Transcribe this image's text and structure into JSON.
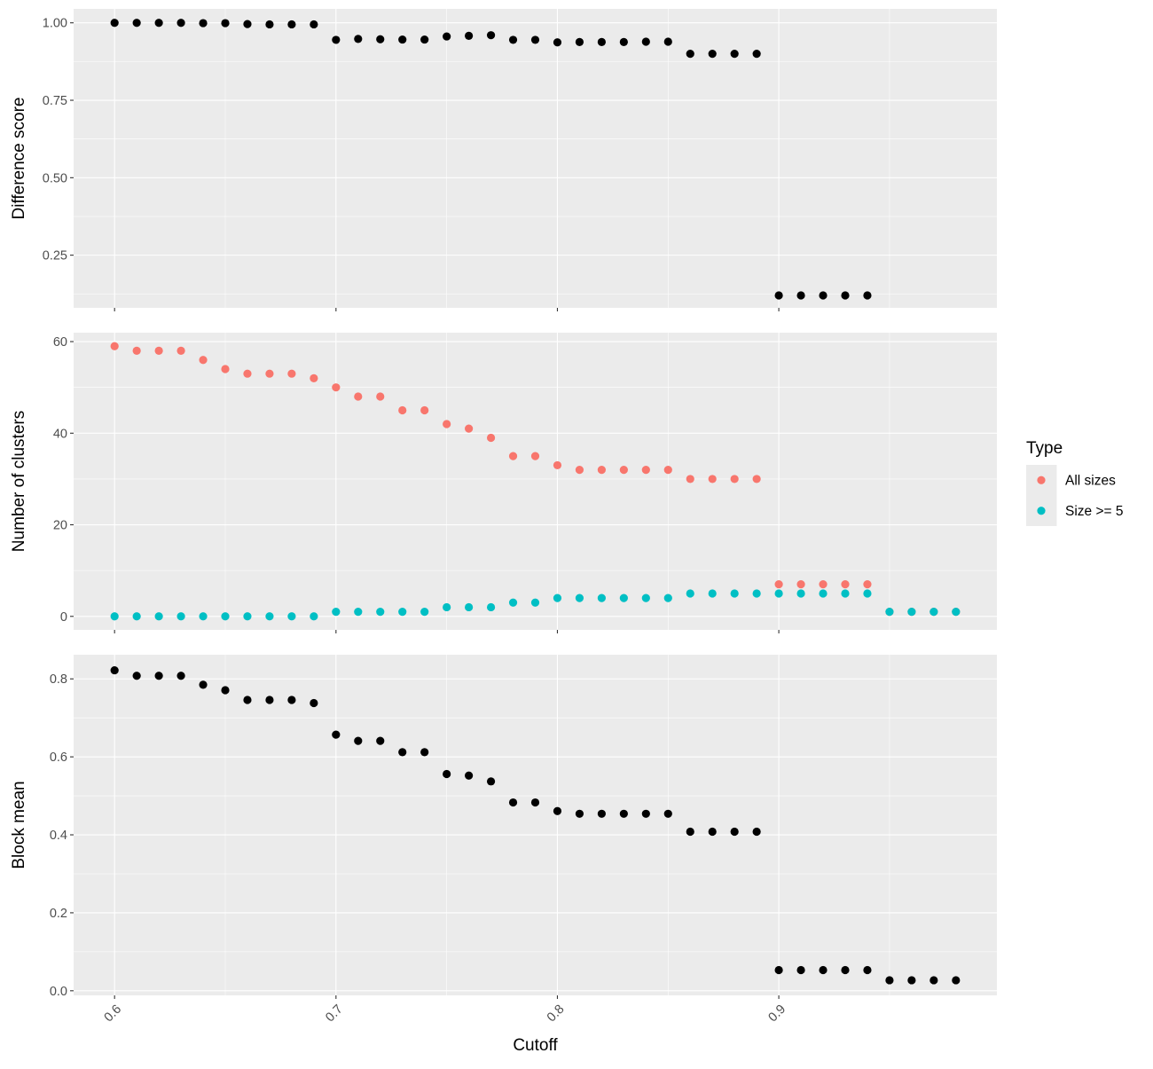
{
  "chart_data": [
    {
      "type": "scatter",
      "ylabel": "Difference score",
      "ylim": [
        0.08,
        1.045
      ],
      "yticks": [
        0.25,
        0.5,
        0.75,
        1.0
      ],
      "ytick_labels": [
        "0.25",
        "0.50",
        "0.75",
        "1.00"
      ],
      "xlim": [
        0.5815,
        0.9985
      ],
      "xticks": [
        0.6,
        0.7,
        0.8,
        0.9
      ],
      "grid": true,
      "show_x_labels": false,
      "series": [
        {
          "color": "#000000",
          "points": [
            [
              0.6,
              1.0
            ],
            [
              0.61,
              1.0
            ],
            [
              0.62,
              1.0
            ],
            [
              0.63,
              1.0
            ],
            [
              0.64,
              0.999
            ],
            [
              0.65,
              0.999
            ],
            [
              0.66,
              0.996
            ],
            [
              0.67,
              0.995
            ],
            [
              0.68,
              0.995
            ],
            [
              0.69,
              0.995
            ],
            [
              0.7,
              0.945
            ],
            [
              0.71,
              0.948
            ],
            [
              0.72,
              0.947
            ],
            [
              0.73,
              0.946
            ],
            [
              0.74,
              0.946
            ],
            [
              0.75,
              0.956
            ],
            [
              0.76,
              0.958
            ],
            [
              0.77,
              0.96
            ],
            [
              0.78,
              0.945
            ],
            [
              0.79,
              0.945
            ],
            [
              0.8,
              0.937
            ],
            [
              0.81,
              0.938
            ],
            [
              0.82,
              0.938
            ],
            [
              0.83,
              0.938
            ],
            [
              0.84,
              0.939
            ],
            [
              0.85,
              0.939
            ],
            [
              0.86,
              0.9
            ],
            [
              0.87,
              0.9
            ],
            [
              0.88,
              0.9
            ],
            [
              0.89,
              0.9
            ],
            [
              0.9,
              0.12
            ],
            [
              0.91,
              0.12
            ],
            [
              0.92,
              0.12
            ],
            [
              0.93,
              0.12
            ],
            [
              0.94,
              0.12
            ]
          ]
        }
      ]
    },
    {
      "type": "scatter",
      "ylabel": "Number of clusters",
      "ylim": [
        -2.95,
        61.95
      ],
      "yticks": [
        0,
        20,
        40,
        60
      ],
      "ytick_labels": [
        "0",
        "20",
        "40",
        "60"
      ],
      "xlim": [
        0.5815,
        0.9985
      ],
      "xticks": [
        0.6,
        0.7,
        0.8,
        0.9
      ],
      "grid": true,
      "show_x_labels": false,
      "series": [
        {
          "name": "All sizes",
          "color": "#F8766D",
          "points": [
            [
              0.6,
              59
            ],
            [
              0.61,
              58
            ],
            [
              0.62,
              58
            ],
            [
              0.63,
              58
            ],
            [
              0.64,
              56
            ],
            [
              0.65,
              54
            ],
            [
              0.66,
              53
            ],
            [
              0.67,
              53
            ],
            [
              0.68,
              53
            ],
            [
              0.69,
              52
            ],
            [
              0.7,
              50
            ],
            [
              0.71,
              48
            ],
            [
              0.72,
              48
            ],
            [
              0.73,
              45
            ],
            [
              0.74,
              45
            ],
            [
              0.75,
              42
            ],
            [
              0.76,
              41
            ],
            [
              0.77,
              39
            ],
            [
              0.78,
              35
            ],
            [
              0.79,
              35
            ],
            [
              0.8,
              33
            ],
            [
              0.81,
              32
            ],
            [
              0.82,
              32
            ],
            [
              0.83,
              32
            ],
            [
              0.84,
              32
            ],
            [
              0.85,
              32
            ],
            [
              0.86,
              30
            ],
            [
              0.87,
              30
            ],
            [
              0.88,
              30
            ],
            [
              0.89,
              30
            ],
            [
              0.9,
              7
            ],
            [
              0.91,
              7
            ],
            [
              0.92,
              7
            ],
            [
              0.93,
              7
            ],
            [
              0.94,
              7
            ],
            [
              0.95,
              1
            ],
            [
              0.96,
              1
            ],
            [
              0.97,
              1
            ],
            [
              0.98,
              1
            ]
          ]
        },
        {
          "name": "Size >= 5",
          "color": "#00BFC4",
          "points": [
            [
              0.6,
              0
            ],
            [
              0.61,
              0
            ],
            [
              0.62,
              0
            ],
            [
              0.63,
              0
            ],
            [
              0.64,
              0
            ],
            [
              0.65,
              0
            ],
            [
              0.66,
              0
            ],
            [
              0.67,
              0
            ],
            [
              0.68,
              0
            ],
            [
              0.69,
              0
            ],
            [
              0.7,
              1
            ],
            [
              0.71,
              1
            ],
            [
              0.72,
              1
            ],
            [
              0.73,
              1
            ],
            [
              0.74,
              1
            ],
            [
              0.75,
              2
            ],
            [
              0.76,
              2
            ],
            [
              0.77,
              2
            ],
            [
              0.78,
              3
            ],
            [
              0.79,
              3
            ],
            [
              0.8,
              4
            ],
            [
              0.81,
              4
            ],
            [
              0.82,
              4
            ],
            [
              0.83,
              4
            ],
            [
              0.84,
              4
            ],
            [
              0.85,
              4
            ],
            [
              0.86,
              5
            ],
            [
              0.87,
              5
            ],
            [
              0.88,
              5
            ],
            [
              0.89,
              5
            ],
            [
              0.9,
              5
            ],
            [
              0.91,
              5
            ],
            [
              0.92,
              5
            ],
            [
              0.93,
              5
            ],
            [
              0.94,
              5
            ],
            [
              0.95,
              1
            ],
            [
              0.96,
              1
            ],
            [
              0.97,
              1
            ],
            [
              0.98,
              1
            ]
          ]
        }
      ]
    },
    {
      "type": "scatter",
      "ylabel": "Block mean",
      "ylim": [
        -0.0118,
        0.862
      ],
      "yticks": [
        0.0,
        0.2,
        0.4,
        0.6,
        0.8
      ],
      "ytick_labels": [
        "0.0",
        "0.2",
        "0.4",
        "0.6",
        "0.8"
      ],
      "xlim": [
        0.5815,
        0.9985
      ],
      "xticks": [
        0.6,
        0.7,
        0.8,
        0.9
      ],
      "xtick_labels": [
        "0.6",
        "0.7",
        "0.8",
        "0.9"
      ],
      "xlabel": "Cutoff",
      "grid": true,
      "show_x_labels": true,
      "series": [
        {
          "color": "#000000",
          "points": [
            [
              0.6,
              0.822
            ],
            [
              0.61,
              0.808
            ],
            [
              0.62,
              0.808
            ],
            [
              0.63,
              0.808
            ],
            [
              0.64,
              0.785
            ],
            [
              0.65,
              0.771
            ],
            [
              0.66,
              0.746
            ],
            [
              0.67,
              0.746
            ],
            [
              0.68,
              0.746
            ],
            [
              0.69,
              0.738
            ],
            [
              0.7,
              0.657
            ],
            [
              0.71,
              0.641
            ],
            [
              0.72,
              0.641
            ],
            [
              0.73,
              0.612
            ],
            [
              0.74,
              0.612
            ],
            [
              0.75,
              0.556
            ],
            [
              0.76,
              0.552
            ],
            [
              0.77,
              0.537
            ],
            [
              0.78,
              0.483
            ],
            [
              0.79,
              0.483
            ],
            [
              0.8,
              0.461
            ],
            [
              0.81,
              0.454
            ],
            [
              0.82,
              0.454
            ],
            [
              0.83,
              0.454
            ],
            [
              0.84,
              0.454
            ],
            [
              0.85,
              0.454
            ],
            [
              0.86,
              0.408
            ],
            [
              0.87,
              0.408
            ],
            [
              0.88,
              0.408
            ],
            [
              0.89,
              0.408
            ],
            [
              0.9,
              0.053
            ],
            [
              0.91,
              0.053
            ],
            [
              0.92,
              0.053
            ],
            [
              0.93,
              0.053
            ],
            [
              0.94,
              0.053
            ],
            [
              0.95,
              0.027
            ],
            [
              0.96,
              0.027
            ],
            [
              0.97,
              0.027
            ],
            [
              0.98,
              0.027
            ]
          ]
        }
      ]
    }
  ],
  "legend": {
    "title": "Type",
    "placement": "right",
    "items": [
      {
        "label": "All sizes",
        "color": "#F8766D"
      },
      {
        "label": "Size >= 5",
        "color": "#00BFC4"
      }
    ]
  },
  "colors": {
    "panel_background": "#EBEBEB",
    "grid_major": "#FFFFFF",
    "axis_text": "#4D4D4D",
    "tick": "#333333"
  }
}
